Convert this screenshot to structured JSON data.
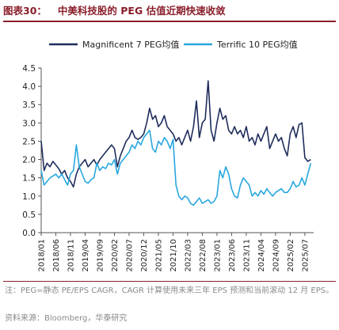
{
  "figure": {
    "number": "图表30：",
    "title": "中美科技股的 PEG 估值近期快速收敛",
    "note": "注：PEG=静态 PE/EPS CAGR，CAGR 计算使用未来三年 EPS 预测和当前滚动 12 月 EPS。",
    "source": "资料来源：Bloomberg，华泰研究",
    "colors": {
      "title": "#8a1f2b",
      "series1": "#1f2d5c",
      "series2": "#29a7df"
    }
  },
  "chart_data": {
    "type": "line",
    "title": "",
    "xlabel": "",
    "ylabel": "",
    "ylim": [
      0,
      4.5
    ],
    "yticks": [
      "0.0",
      "0.5",
      "1.0",
      "1.5",
      "2.0",
      "2.5",
      "3.0",
      "3.5",
      "4.0",
      "4.5"
    ],
    "xlim": [
      "2018-01",
      "2025-10"
    ],
    "xticks": [
      "2018/01",
      "2018/06",
      "2018/11",
      "2019/04",
      "2019/09",
      "2020/02",
      "2020/07",
      "2020/12",
      "2021/05",
      "2021/10",
      "2022/03",
      "2022/08",
      "2023/01",
      "2023/06",
      "2023/11",
      "2024/04",
      "2024/09",
      "2025/02",
      "2025/07"
    ],
    "legend_position": "top",
    "grid": false,
    "series": [
      {
        "name": "Magnificent 7 PEG均值",
        "color": "#1f2d5c",
        "points": [
          [
            "2018-01",
            2.5
          ],
          [
            "2018-02",
            1.7
          ],
          [
            "2018-03",
            1.9
          ],
          [
            "2018-04",
            1.8
          ],
          [
            "2018-05",
            1.95
          ],
          [
            "2018-06",
            1.85
          ],
          [
            "2018-07",
            1.75
          ],
          [
            "2018-08",
            1.6
          ],
          [
            "2018-09",
            1.7
          ],
          [
            "2018-10",
            1.5
          ],
          [
            "2018-11",
            1.4
          ],
          [
            "2018-12",
            1.25
          ],
          [
            "2019-01",
            1.6
          ],
          [
            "2019-02",
            1.8
          ],
          [
            "2019-03",
            1.9
          ],
          [
            "2019-04",
            2.0
          ],
          [
            "2019-05",
            1.8
          ],
          [
            "2019-06",
            1.9
          ],
          [
            "2019-07",
            2.0
          ],
          [
            "2019-08",
            1.85
          ],
          [
            "2019-09",
            2.0
          ],
          [
            "2019-10",
            2.1
          ],
          [
            "2019-11",
            2.2
          ],
          [
            "2019-12",
            2.3
          ],
          [
            "2020-01",
            2.4
          ],
          [
            "2020-02",
            2.3
          ],
          [
            "2020-03",
            1.8
          ],
          [
            "2020-04",
            2.1
          ],
          [
            "2020-05",
            2.3
          ],
          [
            "2020-06",
            2.5
          ],
          [
            "2020-07",
            2.6
          ],
          [
            "2020-08",
            2.8
          ],
          [
            "2020-09",
            2.6
          ],
          [
            "2020-10",
            2.55
          ],
          [
            "2020-11",
            2.6
          ],
          [
            "2020-12",
            2.7
          ],
          [
            "2021-01",
            3.0
          ],
          [
            "2021-02",
            3.4
          ],
          [
            "2021-03",
            3.1
          ],
          [
            "2021-04",
            3.2
          ],
          [
            "2021-05",
            2.9
          ],
          [
            "2021-06",
            3.0
          ],
          [
            "2021-07",
            3.2
          ],
          [
            "2021-08",
            2.9
          ],
          [
            "2021-09",
            2.8
          ],
          [
            "2021-10",
            2.7
          ],
          [
            "2021-11",
            2.5
          ],
          [
            "2021-12",
            2.6
          ],
          [
            "2022-01",
            2.4
          ],
          [
            "2022-02",
            2.6
          ],
          [
            "2022-03",
            2.8
          ],
          [
            "2022-04",
            2.5
          ],
          [
            "2022-05",
            2.9
          ],
          [
            "2022-06",
            3.6
          ],
          [
            "2022-07",
            2.6
          ],
          [
            "2022-08",
            3.0
          ],
          [
            "2022-09",
            3.1
          ],
          [
            "2022-10",
            4.15
          ],
          [
            "2022-11",
            2.8
          ],
          [
            "2022-12",
            2.5
          ],
          [
            "2023-01",
            3.0
          ],
          [
            "2023-02",
            3.4
          ],
          [
            "2023-03",
            3.1
          ],
          [
            "2023-04",
            3.2
          ],
          [
            "2023-05",
            2.8
          ],
          [
            "2023-06",
            2.7
          ],
          [
            "2023-07",
            2.9
          ],
          [
            "2023-08",
            2.7
          ],
          [
            "2023-09",
            2.8
          ],
          [
            "2023-10",
            2.6
          ],
          [
            "2023-11",
            2.9
          ],
          [
            "2023-12",
            2.5
          ],
          [
            "2024-01",
            2.6
          ],
          [
            "2024-02",
            2.4
          ],
          [
            "2024-03",
            2.7
          ],
          [
            "2024-04",
            2.5
          ],
          [
            "2024-05",
            2.7
          ],
          [
            "2024-06",
            2.9
          ],
          [
            "2024-07",
            2.3
          ],
          [
            "2024-08",
            2.5
          ],
          [
            "2024-09",
            2.7
          ],
          [
            "2024-10",
            2.5
          ],
          [
            "2024-11",
            2.6
          ],
          [
            "2024-12",
            2.3
          ],
          [
            "2025-01",
            2.1
          ],
          [
            "2025-02",
            2.7
          ],
          [
            "2025-03",
            2.9
          ],
          [
            "2025-04",
            2.6
          ],
          [
            "2025-05",
            2.95
          ],
          [
            "2025-06",
            3.0
          ],
          [
            "2025-07",
            2.05
          ],
          [
            "2025-08",
            1.95
          ],
          [
            "2025-09",
            2.0
          ]
        ]
      },
      {
        "name": "Terrific 10 PEG均值",
        "color": "#29a7df",
        "points": [
          [
            "2018-01",
            1.7
          ],
          [
            "2018-02",
            1.3
          ],
          [
            "2018-03",
            1.4
          ],
          [
            "2018-04",
            1.5
          ],
          [
            "2018-05",
            1.55
          ],
          [
            "2018-06",
            1.6
          ],
          [
            "2018-07",
            1.5
          ],
          [
            "2018-08",
            1.6
          ],
          [
            "2018-09",
            1.45
          ],
          [
            "2018-10",
            1.3
          ],
          [
            "2018-11",
            1.6
          ],
          [
            "2018-12",
            1.7
          ],
          [
            "2019-01",
            2.4
          ],
          [
            "2019-02",
            1.8
          ],
          [
            "2019-03",
            1.6
          ],
          [
            "2019-04",
            1.4
          ],
          [
            "2019-05",
            1.35
          ],
          [
            "2019-06",
            1.45
          ],
          [
            "2019-07",
            1.5
          ],
          [
            "2019-08",
            1.9
          ],
          [
            "2019-09",
            1.7
          ],
          [
            "2019-10",
            1.8
          ],
          [
            "2019-11",
            1.75
          ],
          [
            "2019-12",
            1.9
          ],
          [
            "2020-01",
            1.85
          ],
          [
            "2020-02",
            2.0
          ],
          [
            "2020-03",
            1.6
          ],
          [
            "2020-04",
            1.9
          ],
          [
            "2020-05",
            2.0
          ],
          [
            "2020-06",
            2.1
          ],
          [
            "2020-07",
            2.2
          ],
          [
            "2020-08",
            2.4
          ],
          [
            "2020-09",
            2.3
          ],
          [
            "2020-10",
            2.5
          ],
          [
            "2020-11",
            2.4
          ],
          [
            "2020-12",
            2.6
          ],
          [
            "2021-01",
            2.7
          ],
          [
            "2021-02",
            2.8
          ],
          [
            "2021-03",
            2.3
          ],
          [
            "2021-04",
            2.2
          ],
          [
            "2021-05",
            2.5
          ],
          [
            "2021-06",
            2.4
          ],
          [
            "2021-07",
            2.6
          ],
          [
            "2021-08",
            2.5
          ],
          [
            "2021-09",
            2.3
          ],
          [
            "2021-10",
            2.55
          ],
          [
            "2021-11",
            1.3
          ],
          [
            "2021-12",
            1.0
          ],
          [
            "2022-01",
            0.9
          ],
          [
            "2022-02",
            1.0
          ],
          [
            "2022-03",
            0.95
          ],
          [
            "2022-04",
            0.8
          ],
          [
            "2022-05",
            0.75
          ],
          [
            "2022-06",
            0.85
          ],
          [
            "2022-07",
            0.95
          ],
          [
            "2022-08",
            0.8
          ],
          [
            "2022-09",
            0.85
          ],
          [
            "2022-10",
            0.9
          ],
          [
            "2022-11",
            0.8
          ],
          [
            "2022-12",
            0.85
          ],
          [
            "2023-01",
            1.0
          ],
          [
            "2023-02",
            1.7
          ],
          [
            "2023-03",
            1.5
          ],
          [
            "2023-04",
            1.8
          ],
          [
            "2023-05",
            1.6
          ],
          [
            "2023-06",
            1.2
          ],
          [
            "2023-07",
            1.0
          ],
          [
            "2023-08",
            0.95
          ],
          [
            "2023-09",
            1.3
          ],
          [
            "2023-10",
            1.5
          ],
          [
            "2023-11",
            1.4
          ],
          [
            "2023-12",
            1.3
          ],
          [
            "2024-01",
            1.0
          ],
          [
            "2024-02",
            1.1
          ],
          [
            "2024-03",
            1.0
          ],
          [
            "2024-04",
            1.15
          ],
          [
            "2024-05",
            1.05
          ],
          [
            "2024-06",
            1.2
          ],
          [
            "2024-07",
            1.1
          ],
          [
            "2024-08",
            1.0
          ],
          [
            "2024-09",
            1.1
          ],
          [
            "2024-10",
            1.15
          ],
          [
            "2024-11",
            1.2
          ],
          [
            "2024-12",
            1.1
          ],
          [
            "2025-01",
            1.1
          ],
          [
            "2025-02",
            1.2
          ],
          [
            "2025-03",
            1.4
          ],
          [
            "2025-04",
            1.25
          ],
          [
            "2025-05",
            1.3
          ],
          [
            "2025-06",
            1.5
          ],
          [
            "2025-07",
            1.3
          ],
          [
            "2025-08",
            1.6
          ],
          [
            "2025-09",
            1.9
          ]
        ]
      }
    ]
  }
}
